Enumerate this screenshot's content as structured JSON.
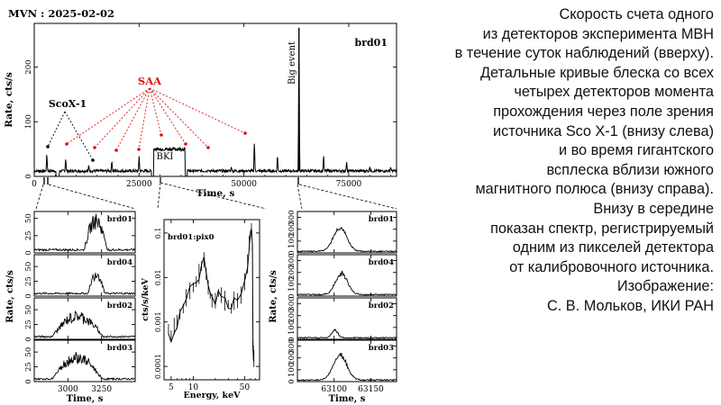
{
  "header": {
    "title": "MVN : 2025-02-02"
  },
  "caption": {
    "para1": [
      "Скорость счета одного",
      "из детекторов эксперимента МВН",
      "в течение суток наблюдений (вверху).",
      "Детальные кривые блеска со всех",
      "четырех детекторов момента",
      "прохождения через поле зрения",
      "источника Sco X-1 (внизу слева)",
      "и во время гигантского",
      "всплеска вблизи южного",
      "магнитного полюса (внизу справа)."
    ],
    "para2": [
      "Внизу в середине",
      "показан спектр, регистрируемый",
      "одним из пикселей детектора",
      "от калибровочного источника."
    ],
    "para3": [
      "Изображение:",
      "С. В. Мольков, ИКИ РАН"
    ]
  },
  "colors": {
    "ink": "#000000",
    "saa": "#e01010",
    "background": "#ffffff"
  },
  "chart_data": [
    {
      "id": "daily",
      "type": "line",
      "detector": "brd01",
      "xlabel": "Time, s",
      "ylabel": "Rate, cts/s",
      "xlim": [
        0,
        86400
      ],
      "ylim": [
        0,
        280
      ],
      "x_ticks": [
        0,
        25000,
        50000,
        75000
      ],
      "y_ticks": [
        0,
        100,
        200
      ],
      "annotations": {
        "sco": "ScoX-1",
        "saa": "SAA",
        "bki": "BKI",
        "big_event": "Big event"
      },
      "baseline": 10,
      "flares": [
        {
          "x": 3000,
          "y": 45
        },
        {
          "x": 7500,
          "y": 35
        },
        {
          "x": 13000,
          "y": 22
        },
        {
          "x": 18500,
          "y": 30
        },
        {
          "x": 25000,
          "y": 40
        },
        {
          "x": 35500,
          "y": 25
        },
        {
          "x": 41500,
          "y": 12
        },
        {
          "x": 47000,
          "y": 18
        },
        {
          "x": 52500,
          "y": 70
        },
        {
          "x": 58000,
          "y": 42
        },
        {
          "x": 63130,
          "y": 272
        },
        {
          "x": 69000,
          "y": 42
        },
        {
          "x": 74500,
          "y": 28
        },
        {
          "x": 80000,
          "y": 18
        },
        {
          "x": 85000,
          "y": 18
        }
      ],
      "bki_interval": [
        28500,
        36000
      ],
      "bki_rate": 50
    },
    {
      "id": "sco",
      "type": "line",
      "xlabel": "Time, s",
      "ylabel": "Rate, cts/s",
      "xlim": [
        2750,
        3500
      ],
      "x_ticks": [
        3000,
        3250
      ],
      "panels": [
        {
          "detector": "brd01",
          "ylim": [
            0,
            60
          ],
          "y_ticks": [
            0,
            25,
            50
          ],
          "start": 3120,
          "end": 3330,
          "peak": 50,
          "base": 3
        },
        {
          "detector": "brd04",
          "ylim": [
            0,
            70
          ],
          "y_ticks": [
            0,
            25,
            50
          ],
          "start": 3150,
          "end": 3300,
          "peak": 40,
          "base": 3
        },
        {
          "detector": "brd02",
          "ylim": [
            0,
            70
          ],
          "y_ticks": [
            0,
            25,
            50
          ],
          "start": 2880,
          "end": 3340,
          "peak": 40,
          "base": 3
        },
        {
          "detector": "brd03",
          "ylim": [
            0,
            70
          ],
          "y_ticks": [
            0,
            25,
            50
          ],
          "start": 2880,
          "end": 3330,
          "peak": 42,
          "base": 3
        }
      ]
    },
    {
      "id": "spectrum",
      "type": "line",
      "detector": "brd01:pix0",
      "xlabel": "Energy, keV",
      "ylabel": "cts/s/keV",
      "xscale": "log",
      "yscale": "log",
      "xlim": [
        4,
        80
      ],
      "ylim": [
        5e-05,
        0.2
      ],
      "x_ticks": [
        5,
        10,
        50
      ],
      "y_ticks": [
        0.0001,
        0.001,
        0.01,
        0.1
      ],
      "points": [
        [
          4.6,
          0.0007
        ],
        [
          5,
          0.0005
        ],
        [
          5.5,
          0.0008
        ],
        [
          6,
          0.001
        ],
        [
          6.6,
          0.0015
        ],
        [
          7.3,
          0.002
        ],
        [
          8,
          0.0035
        ],
        [
          9,
          0.005
        ],
        [
          10,
          0.006
        ],
        [
          11,
          0.008
        ],
        [
          12,
          0.012
        ],
        [
          13,
          0.018
        ],
        [
          14,
          0.025
        ],
        [
          15,
          0.012
        ],
        [
          16,
          0.006
        ],
        [
          17,
          0.004
        ],
        [
          18,
          0.003
        ],
        [
          20,
          0.003
        ],
        [
          22,
          0.0045
        ],
        [
          24,
          0.004
        ],
        [
          27,
          0.003
        ],
        [
          30,
          0.0025
        ],
        [
          33,
          0.002
        ],
        [
          36,
          0.003
        ],
        [
          40,
          0.003
        ],
        [
          45,
          0.004
        ],
        [
          50,
          0.008
        ],
        [
          55,
          0.02
        ],
        [
          58,
          0.06
        ],
        [
          60,
          0.09
        ],
        [
          62,
          0.12
        ],
        [
          64,
          0.05
        ],
        [
          65,
          0.0003
        ],
        [
          66,
          0.0002
        ],
        [
          67,
          0.00015
        ]
      ]
    },
    {
      "id": "bigevent",
      "type": "line",
      "xlabel": "Time, s",
      "ylabel": "Rate, cts/s",
      "xlim": [
        63050,
        63185
      ],
      "x_ticks": [
        63100,
        63150
      ],
      "panels": [
        {
          "detector": "brd01",
          "ylim": [
            0,
            350
          ],
          "y_ticks": [
            0,
            100,
            200,
            300
          ],
          "peak_time": 63108,
          "peak": 210,
          "width": 9,
          "base": 8
        },
        {
          "detector": "brd04",
          "ylim": [
            0,
            350
          ],
          "y_ticks": [
            0,
            100,
            200,
            300
          ],
          "peak_time": 63110,
          "peak": 190,
          "width": 8,
          "base": 8
        },
        {
          "detector": "brd02",
          "ylim": [
            0,
            350
          ],
          "y_ticks": [
            0,
            100,
            200,
            300
          ],
          "peak_time": 63101,
          "peak": 70,
          "width": 4,
          "base": 8
        },
        {
          "detector": "brd03",
          "ylim": [
            0,
            350
          ],
          "y_ticks": [
            0,
            100,
            200,
            300
          ],
          "peak_time": 63108,
          "peak": 230,
          "width": 9,
          "base": 8
        }
      ]
    }
  ]
}
